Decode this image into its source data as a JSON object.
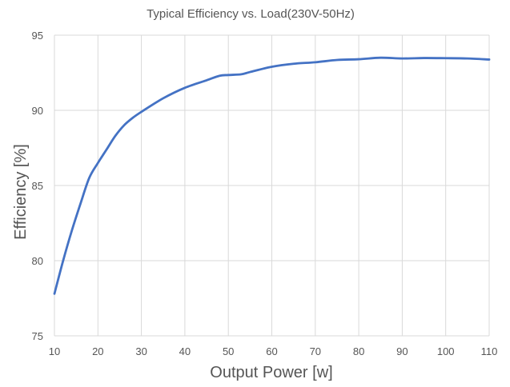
{
  "chart_data": {
    "type": "line",
    "title": "Typical Efficiency vs. Load(230V-50Hz)",
    "xlabel": "Output Power [w]",
    "ylabel": "Efficiency [%]",
    "xlim": [
      10,
      110
    ],
    "ylim": [
      75,
      95
    ],
    "xticks": [
      "10",
      "20",
      "30",
      "40",
      "50",
      "60",
      "70",
      "80",
      "90",
      "100",
      "110"
    ],
    "yticks": [
      "75",
      "80",
      "85",
      "90",
      "95"
    ],
    "grid": true,
    "legend": "none",
    "series": [
      {
        "color": "#4472c4",
        "x": [
          10,
          12,
          14,
          16,
          18,
          20,
          22,
          24,
          26,
          28,
          30,
          35,
          40,
          45,
          48,
          50,
          53,
          55,
          60,
          65,
          70,
          75,
          80,
          85,
          90,
          95,
          100,
          105,
          110
        ],
        "y": [
          77.8,
          80.0,
          82.0,
          83.8,
          85.5,
          86.5,
          87.4,
          88.3,
          89.0,
          89.5,
          89.9,
          90.8,
          91.5,
          92.0,
          92.3,
          92.35,
          92.4,
          92.55,
          92.9,
          93.1,
          93.2,
          93.35,
          93.4,
          93.5,
          93.45,
          93.48,
          93.47,
          93.45,
          93.38
        ]
      }
    ]
  }
}
